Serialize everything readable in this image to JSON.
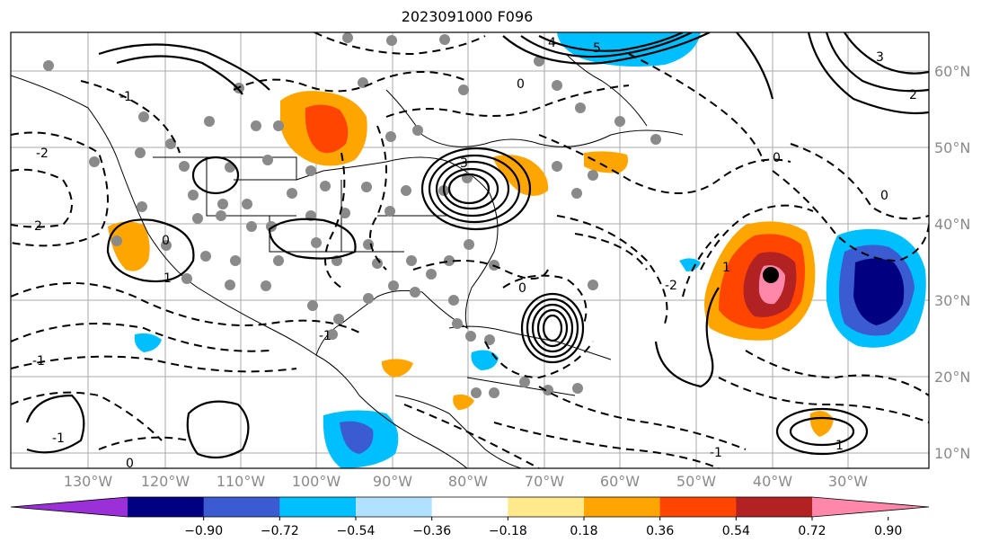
{
  "title": "2023091000 F096",
  "map": {
    "lon_labels": [
      "130°W",
      "120°W",
      "110°W",
      "100°W",
      "90°W",
      "80°W",
      "70°W",
      "60°W",
      "50°W",
      "40°W",
      "30°W"
    ],
    "lat_labels": [
      "60°N",
      "50°N",
      "40°N",
      "30°N",
      "20°N",
      "10°N"
    ],
    "contour_labels": [
      "0",
      "-1",
      "-2",
      "2",
      "3",
      "5",
      "1",
      "4",
      "0",
      "-1",
      "1",
      "-2"
    ]
  },
  "colorbar": {
    "ticks": [
      "−0.90",
      "−0.72",
      "−0.54",
      "−0.36",
      "−0.18",
      "0.18",
      "0.36",
      "0.54",
      "0.72",
      "0.90"
    ],
    "colors": [
      "#9b30d9",
      "#000080",
      "#3a5bd1",
      "#00bfff",
      "#b0e2ff",
      "#ffffff",
      "#ffe98a",
      "#ffa500",
      "#ff4500",
      "#b22222",
      "#ff88aa"
    ]
  }
}
